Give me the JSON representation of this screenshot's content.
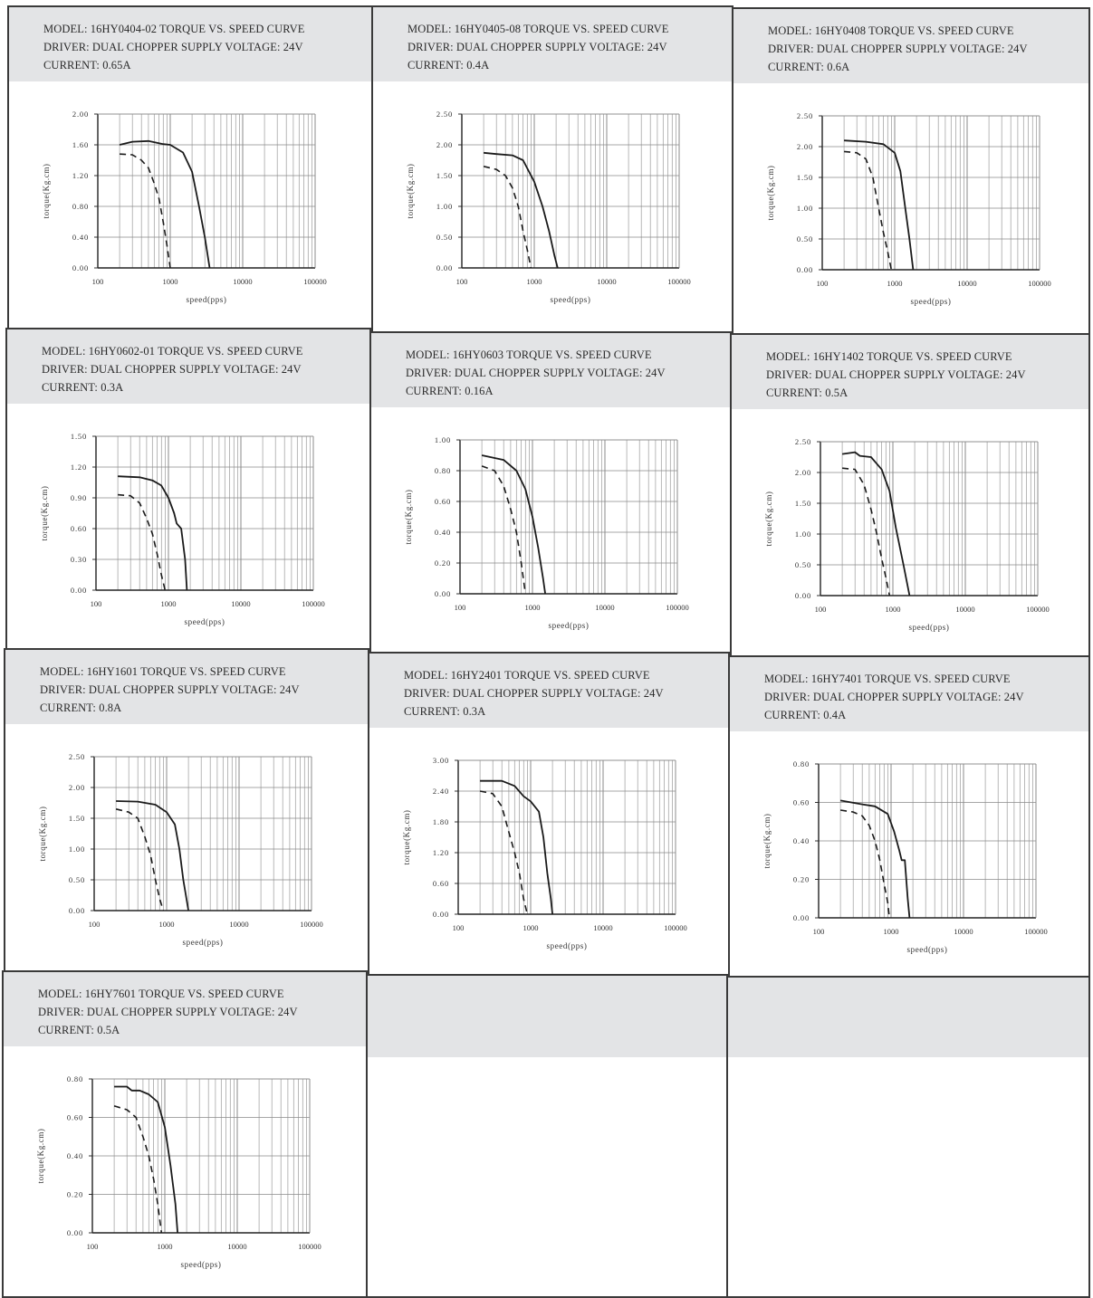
{
  "header_color": "#e3e4e6",
  "grid_color": "#8a8a8a",
  "curve_color": "#1a1a1a",
  "chart_data": [
    {
      "type": "line",
      "model_line": "MODEL: 16HY0404-02 TORQUE VS. SPEED CURVE",
      "driver_line": "DRIVER: DUAL CHOPPER  SUPPLY VOLTAGE: 24V",
      "current_line": "CURRENT: 0.65A",
      "xlabel": "speed(pps)",
      "ylabel": "torque(Kg.cm)",
      "x_scale": "log",
      "xlim": [
        100,
        100000
      ],
      "x_ticks": [
        "100",
        "1000",
        "10000",
        "100000"
      ],
      "ylim": [
        0,
        2.0
      ],
      "y_ticks": [
        "0.00",
        "0.40",
        "0.80",
        "1.20",
        "1.60",
        "2.00"
      ],
      "series": [
        {
          "style": "solid",
          "points": [
            [
              200,
              1.6
            ],
            [
              300,
              1.64
            ],
            [
              500,
              1.65
            ],
            [
              800,
              1.61
            ],
            [
              1000,
              1.6
            ],
            [
              1500,
              1.5
            ],
            [
              2000,
              1.25
            ],
            [
              2500,
              0.8
            ],
            [
              3000,
              0.4
            ],
            [
              3500,
              0.0
            ]
          ]
        },
        {
          "style": "dashed",
          "points": [
            [
              200,
              1.48
            ],
            [
              300,
              1.47
            ],
            [
              400,
              1.4
            ],
            [
              500,
              1.3
            ],
            [
              600,
              1.1
            ],
            [
              700,
              0.9
            ],
            [
              800,
              0.6
            ],
            [
              900,
              0.3
            ],
            [
              1000,
              0.0
            ]
          ]
        }
      ]
    },
    {
      "type": "line",
      "model_line": "MODEL: 16HY0405-08 TORQUE VS. SPEED CURVE",
      "driver_line": "DRIVER: DUAL CHOPPER  SUPPLY VOLTAGE: 24V",
      "current_line": "CURRENT: 0.4A",
      "xlabel": "speed(pps)",
      "ylabel": "torque(Kg.cm)",
      "x_scale": "log",
      "xlim": [
        100,
        100000
      ],
      "x_ticks": [
        "100",
        "1000",
        "10000",
        "100000"
      ],
      "ylim": [
        0,
        2.5
      ],
      "y_ticks": [
        "0.00",
        "0.50",
        "1.00",
        "1.50",
        "2.00",
        "2.50"
      ],
      "series": [
        {
          "style": "solid",
          "points": [
            [
              200,
              1.87
            ],
            [
              300,
              1.85
            ],
            [
              500,
              1.83
            ],
            [
              700,
              1.75
            ],
            [
              1000,
              1.4
            ],
            [
              1300,
              1.0
            ],
            [
              1600,
              0.6
            ],
            [
              1900,
              0.2
            ],
            [
              2100,
              0.0
            ]
          ]
        },
        {
          "style": "dashed",
          "points": [
            [
              200,
              1.65
            ],
            [
              300,
              1.6
            ],
            [
              400,
              1.5
            ],
            [
              500,
              1.3
            ],
            [
              600,
              1.0
            ],
            [
              700,
              0.6
            ],
            [
              800,
              0.3
            ],
            [
              900,
              0.0
            ]
          ]
        }
      ]
    },
    {
      "type": "line",
      "model_line": "MODEL: 16HY0408   TORQUE VS. SPEED CURVE",
      "driver_line": "DRIVER: DUAL CHOPPER  SUPPLY VOLTAGE: 24V",
      "current_line": "CURRENT: 0.6A",
      "xlabel": "speed(pps)",
      "ylabel": "torque(Kg.cm)",
      "x_scale": "log",
      "xlim": [
        100,
        100000
      ],
      "x_ticks": [
        "100",
        "1000",
        "10000",
        "100000"
      ],
      "ylim": [
        0,
        2.5
      ],
      "y_ticks": [
        "0.00",
        "0.50",
        "1.00",
        "1.50",
        "2.00",
        "2.50"
      ],
      "series": [
        {
          "style": "solid",
          "points": [
            [
              200,
              2.1
            ],
            [
              400,
              2.08
            ],
            [
              700,
              2.04
            ],
            [
              1000,
              1.9
            ],
            [
              1200,
              1.6
            ],
            [
              1400,
              1.0
            ],
            [
              1600,
              0.5
            ],
            [
              1800,
              0.0
            ]
          ]
        },
        {
          "style": "dashed",
          "points": [
            [
              200,
              1.92
            ],
            [
              300,
              1.9
            ],
            [
              400,
              1.8
            ],
            [
              500,
              1.5
            ],
            [
              600,
              1.0
            ],
            [
              700,
              0.6
            ],
            [
              800,
              0.3
            ],
            [
              900,
              0.0
            ]
          ]
        }
      ]
    },
    {
      "type": "line",
      "model_line": "MODEL: 16HY0602-01 TORQUE VS. SPEED CURVE",
      "driver_line": "DRIVER: DUAL CHOPPER  SUPPLY VOLTAGE: 24V",
      "current_line": "CURRENT: 0.3A",
      "xlabel": "speed(pps)",
      "ylabel": "torque(Kg.cm)",
      "x_scale": "log",
      "xlim": [
        100,
        100000
      ],
      "x_ticks": [
        "100",
        "1000",
        "10000",
        "100000"
      ],
      "ylim": [
        0,
        1.5
      ],
      "y_ticks": [
        "0.00",
        "0.30",
        "0.60",
        "0.90",
        "1.20",
        "1.50"
      ],
      "series": [
        {
          "style": "solid",
          "points": [
            [
              200,
              1.11
            ],
            [
              400,
              1.1
            ],
            [
              600,
              1.07
            ],
            [
              800,
              1.02
            ],
            [
              1000,
              0.9
            ],
            [
              1200,
              0.75
            ],
            [
              1300,
              0.65
            ],
            [
              1500,
              0.6
            ],
            [
              1700,
              0.3
            ],
            [
              1800,
              0.0
            ]
          ]
        },
        {
          "style": "dashed",
          "points": [
            [
              200,
              0.93
            ],
            [
              300,
              0.92
            ],
            [
              400,
              0.85
            ],
            [
              500,
              0.7
            ],
            [
              600,
              0.55
            ],
            [
              700,
              0.35
            ],
            [
              800,
              0.15
            ],
            [
              900,
              0.0
            ]
          ]
        }
      ]
    },
    {
      "type": "line",
      "model_line": "MODEL: 16HY0603   TORQUE VS. SPEED CURVE",
      "driver_line": "DRIVER: DUAL CHOPPER  SUPPLY VOLTAGE: 24V",
      "current_line": "CURRENT: 0.16A",
      "xlabel": "speed(pps)",
      "ylabel": "torque(Kg.cm)",
      "x_scale": "log",
      "xlim": [
        100,
        100000
      ],
      "x_ticks": [
        "100",
        "1000",
        "10000",
        "100000"
      ],
      "ylim": [
        0,
        1.0
      ],
      "y_ticks": [
        "0.00",
        "0.20",
        "0.40",
        "0.60",
        "0.80",
        "1.00"
      ],
      "series": [
        {
          "style": "solid",
          "points": [
            [
              200,
              0.9
            ],
            [
              400,
              0.87
            ],
            [
              600,
              0.8
            ],
            [
              800,
              0.68
            ],
            [
              1000,
              0.5
            ],
            [
              1200,
              0.3
            ],
            [
              1400,
              0.1
            ],
            [
              1500,
              0.0
            ]
          ]
        },
        {
          "style": "dashed",
          "points": [
            [
              200,
              0.83
            ],
            [
              300,
              0.8
            ],
            [
              400,
              0.7
            ],
            [
              500,
              0.55
            ],
            [
              600,
              0.4
            ],
            [
              700,
              0.2
            ],
            [
              800,
              0.0
            ]
          ]
        }
      ]
    },
    {
      "type": "line",
      "model_line": "MODEL: 16HY1402   TORQUE VS. SPEED CURVE",
      "driver_line": "DRIVER: DUAL CHOPPER  SUPPLY VOLTAGE: 24V",
      "current_line": "CURRENT: 0.5A",
      "xlabel": "speed(pps)",
      "ylabel": "torque(Kg.cm)",
      "x_scale": "log",
      "xlim": [
        100,
        100000
      ],
      "x_ticks": [
        "100",
        "1000",
        "10000",
        "100000"
      ],
      "ylim": [
        0,
        2.5
      ],
      "y_ticks": [
        "0.00",
        "0.50",
        "1.00",
        "1.50",
        "2.00",
        "2.50"
      ],
      "series": [
        {
          "style": "solid",
          "points": [
            [
              200,
              2.3
            ],
            [
              300,
              2.33
            ],
            [
              350,
              2.27
            ],
            [
              500,
              2.25
            ],
            [
              700,
              2.05
            ],
            [
              900,
              1.7
            ],
            [
              1100,
              1.1
            ],
            [
              1400,
              0.5
            ],
            [
              1700,
              0.0
            ]
          ]
        },
        {
          "style": "dashed",
          "points": [
            [
              200,
              2.07
            ],
            [
              300,
              2.05
            ],
            [
              400,
              1.8
            ],
            [
              500,
              1.4
            ],
            [
              600,
              1.0
            ],
            [
              700,
              0.6
            ],
            [
              800,
              0.3
            ],
            [
              900,
              0.0
            ]
          ]
        }
      ]
    },
    {
      "type": "line",
      "model_line": "MODEL: 16HY1601    TORQUE VS. SPEED CURVE",
      "driver_line": "DRIVER: DUAL CHOPPER  SUPPLY VOLTAGE: 24V",
      "current_line": "CURRENT: 0.8A",
      "xlabel": "speed(pps)",
      "ylabel": "torque(Kg.cm)",
      "x_scale": "log",
      "xlim": [
        100,
        100000
      ],
      "x_ticks": [
        "100",
        "1000",
        "10000",
        "100000"
      ],
      "ylim": [
        0,
        2.5
      ],
      "y_ticks": [
        "0.00",
        "0.50",
        "1.00",
        "1.50",
        "2.00",
        "2.50"
      ],
      "series": [
        {
          "style": "solid",
          "points": [
            [
              200,
              1.78
            ],
            [
              400,
              1.77
            ],
            [
              700,
              1.72
            ],
            [
              1000,
              1.6
            ],
            [
              1300,
              1.4
            ],
            [
              1500,
              1.0
            ],
            [
              1700,
              0.5
            ],
            [
              2000,
              0.0
            ]
          ]
        },
        {
          "style": "dashed",
          "points": [
            [
              200,
              1.65
            ],
            [
              300,
              1.6
            ],
            [
              400,
              1.5
            ],
            [
              500,
              1.2
            ],
            [
              600,
              0.9
            ],
            [
              700,
              0.5
            ],
            [
              800,
              0.2
            ],
            [
              900,
              0.0
            ]
          ]
        }
      ]
    },
    {
      "type": "line",
      "model_line": "MODEL: 16HY2401    TORQUE VS. SPEED CURVE",
      "driver_line": "DRIVER: DUAL CHOPPER  SUPPLY VOLTAGE: 24V",
      "current_line": "CURRENT: 0.3A",
      "xlabel": "speed(pps)",
      "ylabel": "torque(Kg.cm)",
      "x_scale": "log",
      "xlim": [
        100,
        100000
      ],
      "x_ticks": [
        "100",
        "1000",
        "10000",
        "100000"
      ],
      "ylim": [
        0,
        3.0
      ],
      "y_ticks": [
        "0.00",
        "0.60",
        "1.20",
        "1.80",
        "2.40",
        "3.00"
      ],
      "series": [
        {
          "style": "solid",
          "points": [
            [
              200,
              2.6
            ],
            [
              400,
              2.6
            ],
            [
              600,
              2.5
            ],
            [
              800,
              2.3
            ],
            [
              1000,
              2.2
            ],
            [
              1300,
              2.0
            ],
            [
              1500,
              1.5
            ],
            [
              1700,
              0.8
            ],
            [
              1900,
              0.3
            ],
            [
              2000,
              0.0
            ]
          ]
        },
        {
          "style": "dashed",
          "points": [
            [
              200,
              2.4
            ],
            [
              300,
              2.35
            ],
            [
              400,
              2.1
            ],
            [
              500,
              1.6
            ],
            [
              600,
              1.2
            ],
            [
              700,
              0.8
            ],
            [
              800,
              0.3
            ],
            [
              900,
              0.0
            ]
          ]
        }
      ]
    },
    {
      "type": "line",
      "model_line": "MODEL: 16HY7401    TORQUE VS. SPEED CURVE",
      "driver_line": "DRIVER: DUAL CHOPPER  SUPPLY VOLTAGE: 24V",
      "current_line": "CURRENT: 0.4A",
      "xlabel": "speed(pps)",
      "ylabel": "torque(Kg.cm)",
      "x_scale": "log",
      "xlim": [
        100,
        100000
      ],
      "x_ticks": [
        "100",
        "1000",
        "10000",
        "100000"
      ],
      "ylim": [
        0,
        0.8
      ],
      "y_ticks": [
        "0.00",
        "0.20",
        "0.40",
        "0.60",
        "0.80"
      ],
      "series": [
        {
          "style": "solid",
          "points": [
            [
              200,
              0.61
            ],
            [
              400,
              0.59
            ],
            [
              600,
              0.58
            ],
            [
              900,
              0.54
            ],
            [
              1100,
              0.45
            ],
            [
              1300,
              0.35
            ],
            [
              1400,
              0.3
            ],
            [
              1550,
              0.3
            ],
            [
              1700,
              0.1
            ],
            [
              1800,
              0.0
            ]
          ]
        },
        {
          "style": "dashed",
          "points": [
            [
              200,
              0.56
            ],
            [
              300,
              0.55
            ],
            [
              400,
              0.53
            ],
            [
              500,
              0.48
            ],
            [
              600,
              0.4
            ],
            [
              700,
              0.3
            ],
            [
              800,
              0.18
            ],
            [
              900,
              0.08
            ],
            [
              950,
              0.0
            ]
          ]
        }
      ]
    },
    {
      "type": "line",
      "model_line": "MODEL: 16HY7601    TORQUE VS. SPEED CURVE",
      "driver_line": "DRIVER: DUAL CHOPPER  SUPPLY VOLTAGE: 24V",
      "current_line": "CURRENT: 0.5A",
      "xlabel": "speed(pps)",
      "ylabel": "torque(Kg.cm)",
      "x_scale": "log",
      "xlim": [
        100,
        100000
      ],
      "x_ticks": [
        "100",
        "1000",
        "10000",
        "100000"
      ],
      "ylim": [
        0,
        0.8
      ],
      "y_ticks": [
        "0.00",
        "0.20",
        "0.40",
        "0.60",
        "0.80"
      ],
      "series": [
        {
          "style": "solid",
          "points": [
            [
              200,
              0.76
            ],
            [
              300,
              0.76
            ],
            [
              350,
              0.74
            ],
            [
              450,
              0.74
            ],
            [
              600,
              0.72
            ],
            [
              800,
              0.68
            ],
            [
              1000,
              0.55
            ],
            [
              1200,
              0.35
            ],
            [
              1400,
              0.15
            ],
            [
              1500,
              0.0
            ]
          ]
        },
        {
          "style": "dashed",
          "points": [
            [
              200,
              0.66
            ],
            [
              300,
              0.64
            ],
            [
              400,
              0.6
            ],
            [
              500,
              0.5
            ],
            [
              600,
              0.4
            ],
            [
              700,
              0.28
            ],
            [
              800,
              0.15
            ],
            [
              900,
              0.0
            ]
          ]
        }
      ]
    }
  ]
}
